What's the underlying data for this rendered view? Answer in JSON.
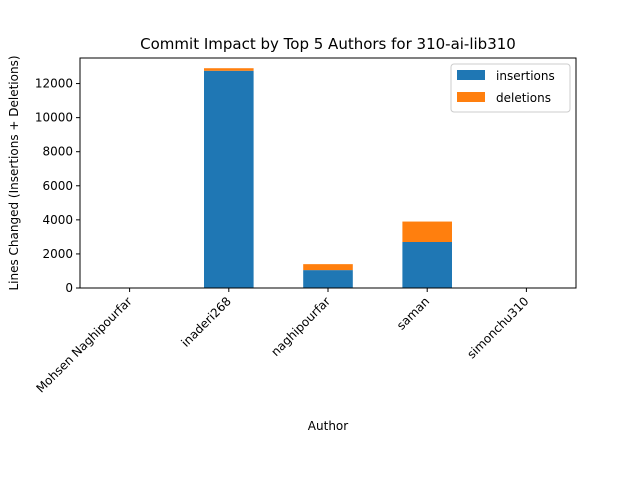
{
  "chart_data": {
    "type": "bar",
    "stacked": true,
    "title": "Commit Impact by Top 5 Authors for 310-ai-lib310",
    "xlabel": "Author",
    "ylabel": "Lines Changed (Insertions + Deletions)",
    "categories": [
      "Mohsen Naghipourfar",
      "inaderi268",
      "naghipourfar",
      "saman",
      "simonchu310"
    ],
    "series": [
      {
        "name": "insertions",
        "color": "#1f77b4",
        "values": [
          0,
          12750,
          1050,
          2700,
          0
        ]
      },
      {
        "name": "deletions",
        "color": "#ff7f0e",
        "values": [
          0,
          150,
          350,
          1200,
          0
        ]
      }
    ],
    "ylim": [
      0,
      13500
    ],
    "yticks": [
      0,
      2000,
      4000,
      6000,
      8000,
      10000,
      12000
    ],
    "ytick_labels": [
      "0",
      "2000",
      "4000",
      "6000",
      "8000",
      "10000",
      "12000"
    ],
    "grid": false,
    "legend_position": "top-right"
  }
}
